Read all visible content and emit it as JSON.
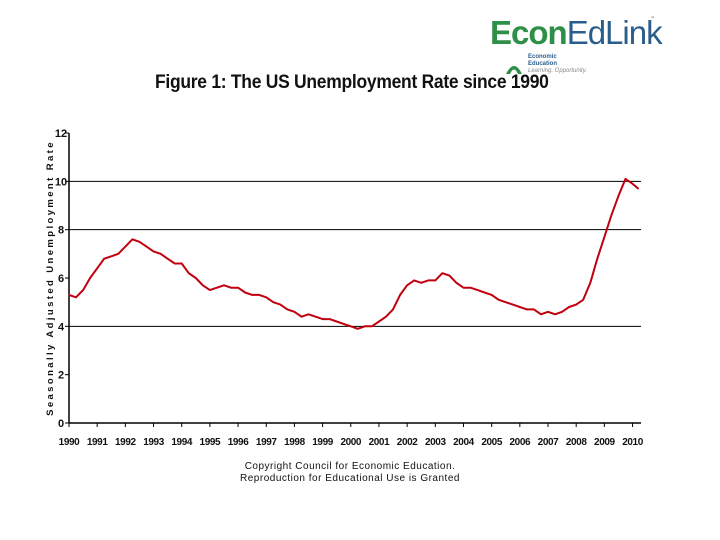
{
  "logo": {
    "econ": "Econ",
    "edlink": "EdLink",
    "sub_line1": "Economic",
    "sub_line2": "Education",
    "tagline": "Learning. Opportunity."
  },
  "footer": {
    "line1": "Copyright Council for Economic Education.",
    "line2": "Reproduction for Educational Use is Granted"
  },
  "colors": {
    "line": "#c0000e",
    "grid": "#000000",
    "axis": "#000000"
  },
  "chart_data": {
    "type": "line",
    "title": "Figure 1: The US Unemployment Rate since 1990",
    "xlabel": "",
    "ylabel": "Seasonally Adjusted Unemployment Rate",
    "xlim": [
      1990,
      2010.3
    ],
    "ylim": [
      0,
      12
    ],
    "yticks": [
      0,
      2,
      4,
      6,
      8,
      10,
      12
    ],
    "xticks": [
      "1990",
      "1991",
      "1992",
      "1993",
      "1994",
      "1995",
      "1996",
      "1997",
      "1998",
      "1999",
      "2000",
      "2001",
      "2002",
      "2003",
      "2004",
      "2005",
      "2006",
      "2007",
      "2008",
      "2009",
      "2010"
    ],
    "grid": "horizontal at 4, 8, 10",
    "legend": "none",
    "series": [
      {
        "x": [
          1990.0,
          1990.25,
          1990.5,
          1990.75,
          1991.0,
          1991.25,
          1991.5,
          1991.75,
          1992.0,
          1992.25,
          1992.5,
          1992.75,
          1993.0,
          1993.25,
          1993.5,
          1993.75,
          1994.0,
          1994.25,
          1994.5,
          1994.75,
          1995.0,
          1995.25,
          1995.5,
          1995.75,
          1996.0,
          1996.25,
          1996.5,
          1996.75,
          1997.0,
          1997.25,
          1997.5,
          1997.75,
          1998.0,
          1998.25,
          1998.5,
          1998.75,
          1999.0,
          1999.25,
          1999.5,
          1999.75,
          2000.0,
          2000.25,
          2000.5,
          2000.75,
          2001.0,
          2001.25,
          2001.5,
          2001.75,
          2002.0,
          2002.25,
          2002.5,
          2002.75,
          2003.0,
          2003.25,
          2003.5,
          2003.75,
          2004.0,
          2004.25,
          2004.5,
          2004.75,
          2005.0,
          2005.25,
          2005.5,
          2005.75,
          2006.0,
          2006.25,
          2006.5,
          2006.75,
          2007.0,
          2007.25,
          2007.5,
          2007.75,
          2008.0,
          2008.25,
          2008.5,
          2008.75,
          2009.0,
          2009.25,
          2009.5,
          2009.75,
          2010.0,
          2010.2
        ],
        "y": [
          5.3,
          5.2,
          5.5,
          6.0,
          6.4,
          6.8,
          6.9,
          7.0,
          7.3,
          7.6,
          7.5,
          7.3,
          7.1,
          7.0,
          6.8,
          6.6,
          6.6,
          6.2,
          6.0,
          5.7,
          5.5,
          5.6,
          5.7,
          5.6,
          5.6,
          5.4,
          5.3,
          5.3,
          5.2,
          5.0,
          4.9,
          4.7,
          4.6,
          4.4,
          4.5,
          4.4,
          4.3,
          4.3,
          4.2,
          4.1,
          4.0,
          3.9,
          4.0,
          4.0,
          4.2,
          4.4,
          4.7,
          5.3,
          5.7,
          5.9,
          5.8,
          5.9,
          5.9,
          6.2,
          6.1,
          5.8,
          5.6,
          5.6,
          5.5,
          5.4,
          5.3,
          5.1,
          5.0,
          4.9,
          4.8,
          4.7,
          4.7,
          4.5,
          4.6,
          4.5,
          4.6,
          4.8,
          4.9,
          5.1,
          5.8,
          6.8,
          7.7,
          8.6,
          9.4,
          10.1,
          9.9,
          9.7
        ]
      }
    ]
  }
}
